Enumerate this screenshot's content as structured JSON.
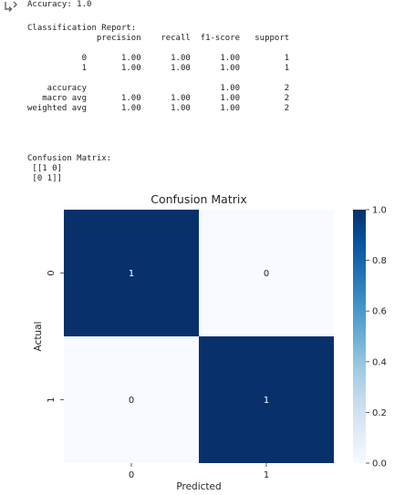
{
  "output": {
    "accuracy_line": "Accuracy: 1.0",
    "report_text": "Classification Report:\n              precision    recall  f1-score   support\n\n           0       1.00      1.00      1.00         1\n           1       1.00      1.00      1.00         1\n\n    accuracy                           1.00         2\n   macro avg       1.00      1.00      1.00         2\nweighted avg       1.00      1.00      1.00         2",
    "confusion_text": "Confusion Matrix:\n [[1 0]\n [0 1]]",
    "icon": "output-expand-icon"
  },
  "chart_data": {
    "type": "heatmap",
    "title": "Confusion Matrix",
    "xlabel": "Predicted",
    "ylabel": "Actual",
    "x_categories": [
      "0",
      "1"
    ],
    "y_categories": [
      "0",
      "1"
    ],
    "values": [
      [
        1,
        0
      ],
      [
        0,
        1
      ]
    ],
    "annotations": [
      [
        "1",
        "0"
      ],
      [
        "0",
        "1"
      ]
    ],
    "colormap": "Blues",
    "vmin": 0,
    "vmax": 1,
    "colorbar_ticks": [
      "0.0",
      "0.2",
      "0.4",
      "0.6",
      "0.8",
      "1.0"
    ],
    "colors": {
      "high": "#08306b",
      "low": "#f7fbff",
      "grid_line": "#ffffff",
      "annotation_on_dark": "#ffffff",
      "annotation_on_light": "#262626"
    }
  }
}
